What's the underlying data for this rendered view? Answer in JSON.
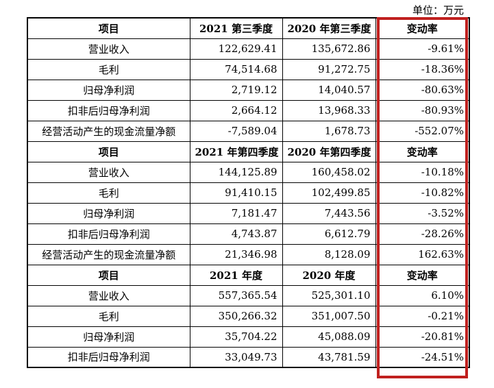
{
  "unit_label": "单位：万元",
  "highlight_color": "#c0201e",
  "sections": [
    {
      "header": [
        "项目",
        "2021 第三季度",
        "2020 年第三季度",
        "变动率"
      ],
      "rows": [
        [
          "营业收入",
          "122,629.41",
          "135,672.86",
          "-9.61%"
        ],
        [
          "毛利",
          "74,514.68",
          "91,272.75",
          "-18.36%"
        ],
        [
          "归母净利润",
          "2,719.12",
          "14,040.57",
          "-80.63%"
        ],
        [
          "扣非后归母净利润",
          "2,664.12",
          "13,968.33",
          "-80.93%"
        ],
        [
          "经营活动产生的现金流量净额",
          "-7,589.04",
          "1,678.73",
          "-552.07%"
        ]
      ]
    },
    {
      "header": [
        "项目",
        "2021 年第四季度",
        "2020 年第四季度",
        "变动率"
      ],
      "rows": [
        [
          "营业收入",
          "144,125.89",
          "160,458.02",
          "-10.18%"
        ],
        [
          "毛利",
          "91,410.15",
          "102,499.85",
          "-10.82%"
        ],
        [
          "归母净利润",
          "7,181.47",
          "7,443.56",
          "-3.52%"
        ],
        [
          "扣非后归母净利润",
          "4,743.87",
          "6,612.79",
          "-28.26%"
        ],
        [
          "经营活动产生的现金流量净额",
          "21,346.98",
          "8,128.09",
          "162.63%"
        ]
      ]
    },
    {
      "header": [
        "项目",
        "2021 年度",
        "2020 年度",
        "变动率"
      ],
      "rows": [
        [
          "营业收入",
          "557,365.54",
          "525,301.10",
          "6.10%"
        ],
        [
          "毛利",
          "350,266.32",
          "351,007.50",
          "-0.21%"
        ],
        [
          "归母净利润",
          "35,704.22",
          "45,088.09",
          "-20.81%"
        ],
        [
          "扣非后归母净利润",
          "33,049.73",
          "43,781.59",
          "-24.51%"
        ]
      ]
    }
  ]
}
